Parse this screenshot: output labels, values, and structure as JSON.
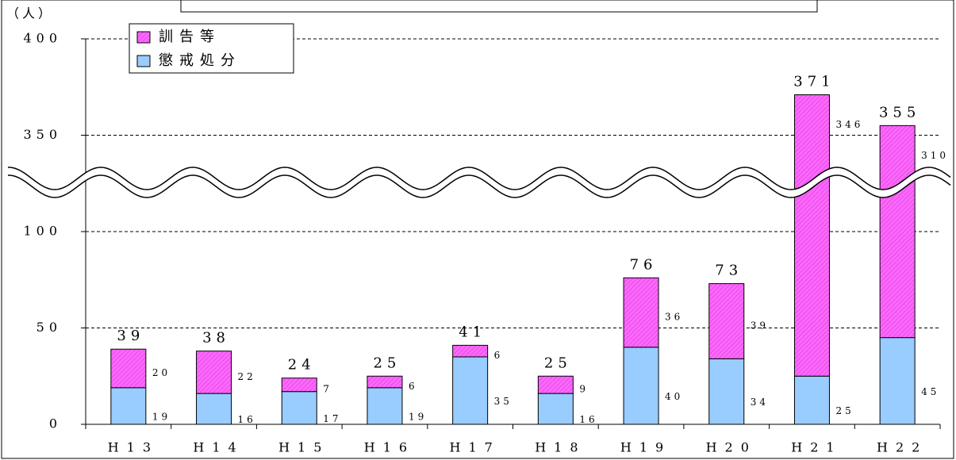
{
  "chart_data": {
    "type": "stacked_bar",
    "y_label": "（人）",
    "categories": [
      "H13",
      "H14",
      "H15",
      "H16",
      "H17",
      "H18",
      "H19",
      "H20",
      "H21",
      "H22"
    ],
    "series": [
      {
        "name": "懲戒処分",
        "color": "#99ccff",
        "values": [
          19,
          16,
          17,
          19,
          35,
          16,
          40,
          34,
          25,
          45
        ]
      },
      {
        "name": "訓告等",
        "color": "#ff66ff",
        "hatch": true,
        "values": [
          20,
          22,
          7,
          6,
          6,
          9,
          36,
          39,
          346,
          310
        ]
      }
    ],
    "totals": [
      39,
      38,
      24,
      25,
      41,
      25,
      76,
      73,
      371,
      355
    ],
    "ylim": [
      0,
      400
    ],
    "yticks": [
      0,
      50,
      100,
      350,
      400
    ],
    "axis_break": [
      125,
      325
    ],
    "grid": true,
    "legend": "top-left"
  }
}
